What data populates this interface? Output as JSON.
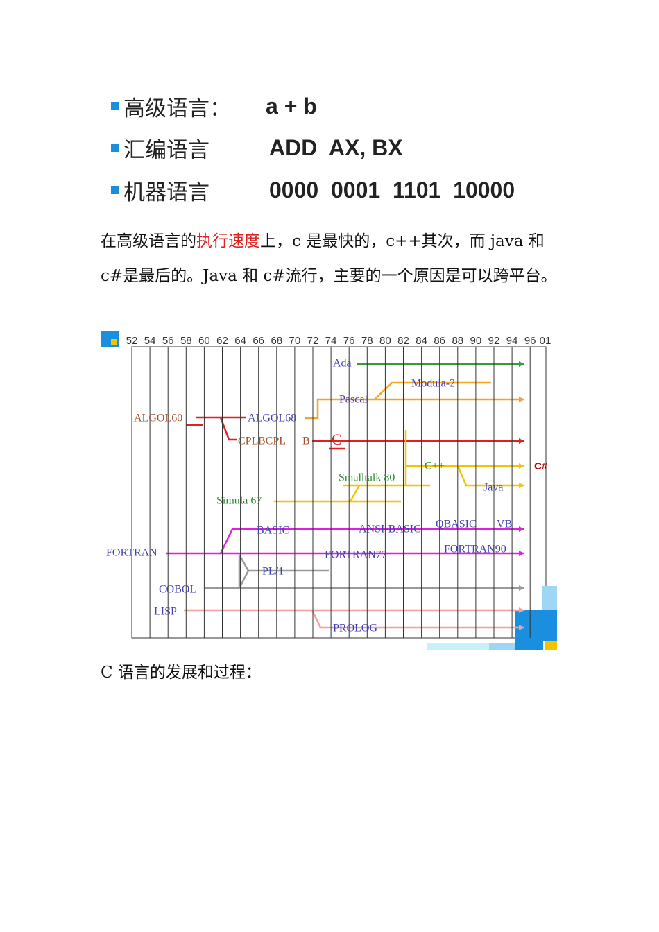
{
  "code_examples": {
    "rows": [
      {
        "label": "高级语言：",
        "code": "a + b"
      },
      {
        "label": "汇编语言",
        "code": "ADD  AX, BX"
      },
      {
        "label": "机器语言",
        "code": "0000  0001  1101  10000"
      }
    ]
  },
  "paragraph1": {
    "before": "在高级语言的",
    "highlight": "执行速度",
    "after": "上，c 是最快的，c++其次，而 java 和 c#是最后的。Java 和 c#流行，主要的一个原因是可以跨平台。"
  },
  "timeline": {
    "years": [
      "52",
      "54",
      "56",
      "58",
      "60",
      "62",
      "64",
      "66",
      "68",
      "70",
      "72",
      "74",
      "76",
      "78",
      "80",
      "82",
      "84",
      "86",
      "88",
      "90",
      "92",
      "94",
      "96",
      "01"
    ],
    "languages": [
      "Ada",
      "Modula-2",
      "Pascal",
      "ALGOL60",
      "ALGOL68",
      "CPL",
      "BCPL",
      "B",
      "C",
      "C++",
      "C#",
      "Smalltalk 80",
      "Java",
      "Simula 67",
      "BASIC",
      "ANSI-BASIC",
      "QBASIC",
      "VB",
      "FORTRAN",
      "FORTRAN77",
      "FORTRAN90",
      "PL/1",
      "COBOL",
      "LISP",
      "PROLOG"
    ]
  },
  "paragraph2": "C 语言的发展和过程："
}
